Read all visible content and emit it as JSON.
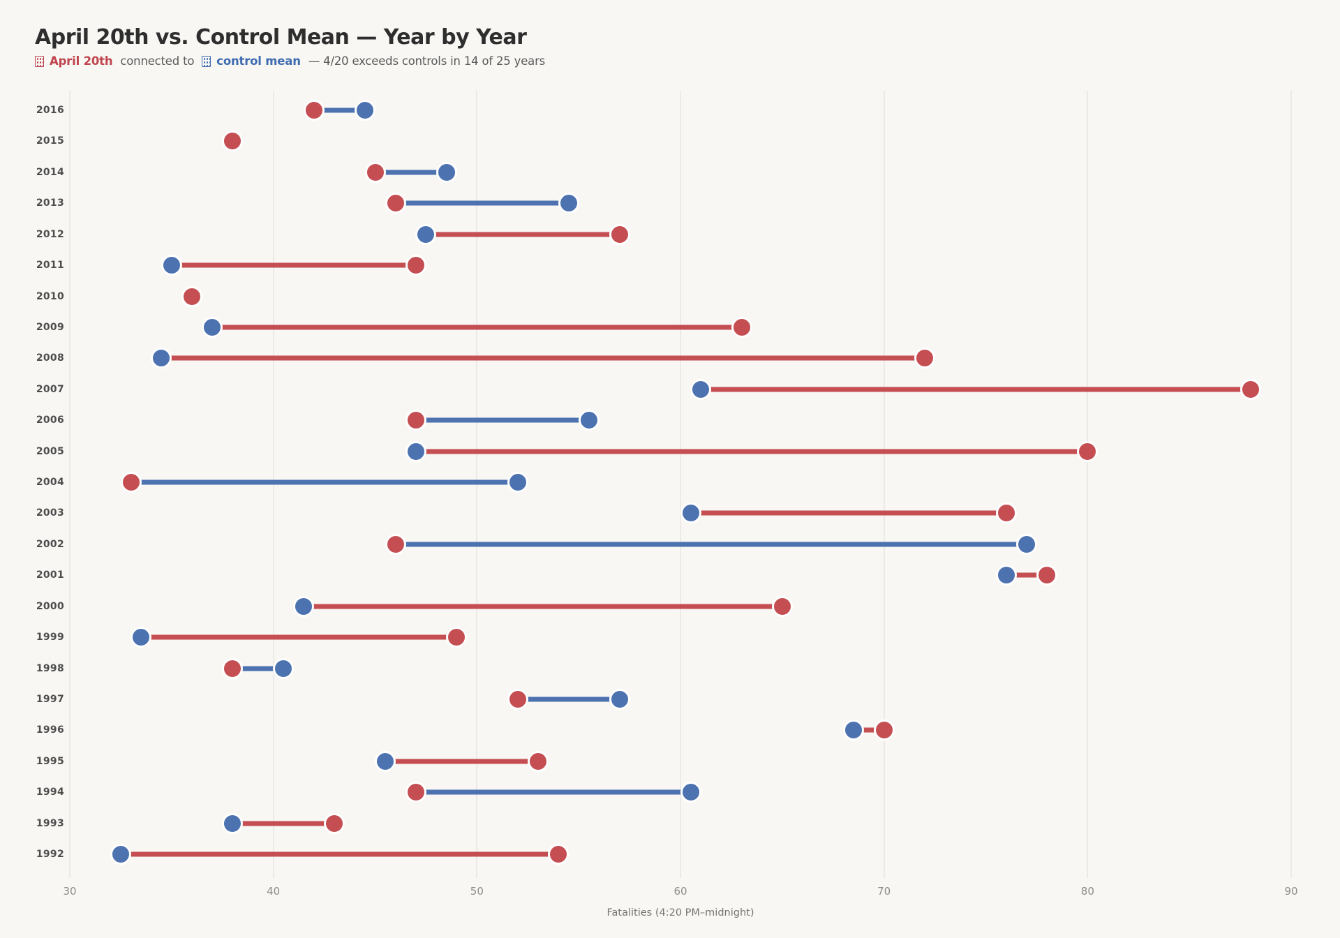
{
  "title": "April 20th vs. Control Mean — Year by Year",
  "subtitle": {
    "series_a_label": "April 20th",
    "connector_text": " connected to ",
    "series_b_label": "control mean",
    "suffix": " — 4/20 exceeds controls in 14 of 25 years"
  },
  "colors": {
    "april_red": "#c44e52",
    "control_blue": "#4c72b0",
    "background": "#f8f7f4",
    "gridline": "#eceae6",
    "title_text": "#2e2e2e",
    "subtitle_text": "#5a5a5a"
  },
  "icons": {
    "april_marker": "red-square-marker-icon",
    "control_marker": "blue-square-marker-icon"
  },
  "chart_data": {
    "type": "scatter",
    "variant": "dumbbell",
    "title": "April 20th vs. Control Mean — Year by Year",
    "xlabel": "Fatalities (4:20 PM–midnight)",
    "ylabel": "",
    "xlim": [
      30,
      90
    ],
    "xticks": [
      30,
      40,
      50,
      60,
      70,
      80,
      90
    ],
    "grid": "vertical",
    "legend_position": "subtitle",
    "categories": [
      2016,
      2015,
      2014,
      2013,
      2012,
      2011,
      2010,
      2009,
      2008,
      2007,
      2006,
      2005,
      2004,
      2003,
      2002,
      2001,
      2000,
      1999,
      1998,
      1997,
      1996,
      1995,
      1994,
      1993,
      1992
    ],
    "series": [
      {
        "name": "April 20th",
        "color": "#c44e52",
        "values": [
          42,
          38,
          45,
          46,
          57,
          47,
          36,
          63,
          72,
          88,
          47,
          80,
          33,
          76,
          46,
          78,
          65,
          49,
          38,
          52,
          70,
          53,
          47,
          43,
          54
        ]
      },
      {
        "name": "control mean",
        "color": "#4c72b0",
        "values": [
          44.5,
          38,
          48.5,
          54.5,
          47.5,
          35,
          36,
          37,
          34.5,
          61,
          55.5,
          47,
          52,
          60.5,
          77,
          76,
          41.5,
          33.5,
          40.5,
          57,
          68.5,
          45.5,
          60.5,
          38,
          32.5
        ]
      }
    ],
    "connector_rule": "line colored like the larger value; red when April 20th exceeds control mean, blue otherwise; hidden when equal",
    "exceed_years_count": 14,
    "total_years": 25
  }
}
